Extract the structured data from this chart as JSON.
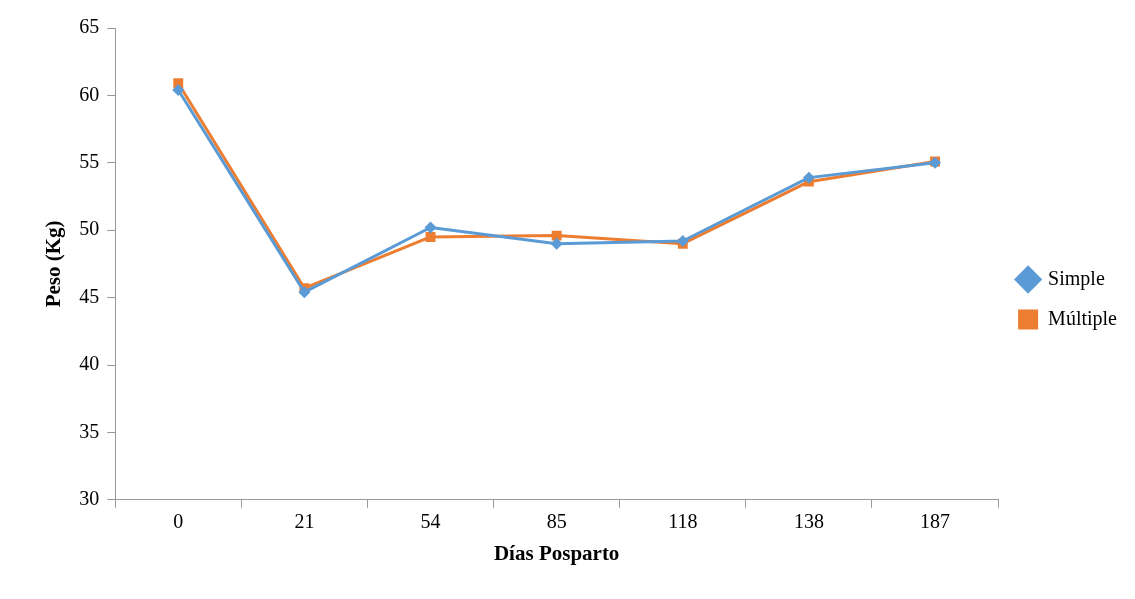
{
  "chart_data": {
    "type": "line",
    "xlabel": "Días Posparto",
    "ylabel": "Peso (Kg)",
    "categories": [
      "0",
      "21",
      "54",
      "85",
      "118",
      "138",
      "187"
    ],
    "series": [
      {
        "name": "Simple",
        "color": "#5b9bd5",
        "marker": "diamond",
        "values": [
          60.4,
          45.4,
          50.2,
          49.0,
          49.2,
          53.9,
          55.0
        ]
      },
      {
        "name": "Múltiple",
        "color": "#ed7d31",
        "marker": "square",
        "values": [
          60.9,
          45.7,
          49.5,
          49.6,
          49.0,
          53.6,
          55.1
        ]
      }
    ],
    "ylim": [
      30,
      65
    ],
    "yticks": [
      30,
      35,
      40,
      45,
      50,
      55,
      60,
      65
    ],
    "grid": false,
    "legend": "right",
    "line_style": "solid"
  }
}
